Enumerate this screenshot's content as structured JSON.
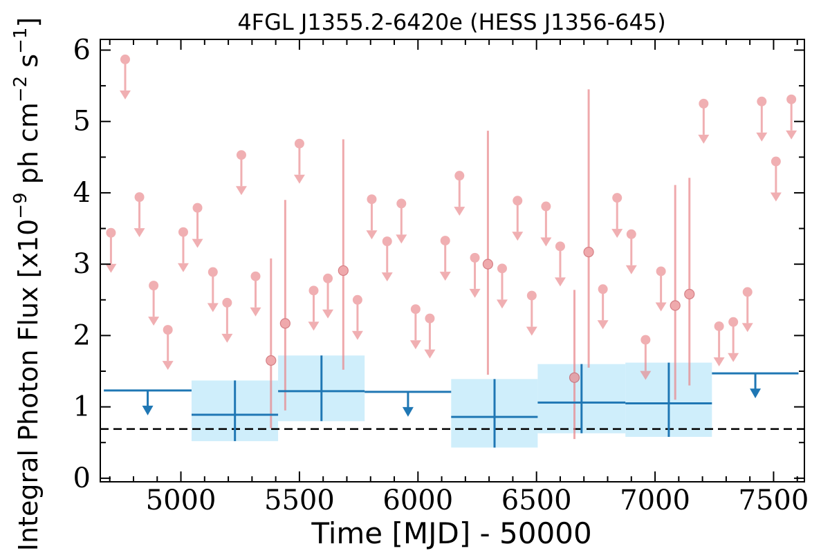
{
  "chart_data": {
    "type": "scatter",
    "title": "4FGL J1355.2-6420e (HESS J1356-645)",
    "xlabel": "Time [MJD] - 50000",
    "ylabel": "Integral Photon Flux [x10",
    "ylabel_exp": "−9",
    "ylabel_unit": " ph cm",
    "ylabel_exp2": "−2",
    "ylabel_unit2": " s",
    "ylabel_exp3": "−1",
    "ylabel_end": "]",
    "xlim": [
      4660,
      7630
    ],
    "ylim": [
      -0.05,
      6.15
    ],
    "xticks": [
      5000,
      5500,
      6000,
      6500,
      7000,
      7500
    ],
    "yticks": [
      0,
      1,
      2,
      3,
      4,
      5,
      6
    ],
    "reference_level": 0.69,
    "colors": {
      "short_bins": "#e9858a",
      "long_bins": "#1f77b4",
      "long_band": "#cfeefb",
      "reference": "#000000"
    },
    "short_bins": {
      "upper_limits": [
        {
          "x": 4705,
          "y": 3.44
        },
        {
          "x": 4765,
          "y": 5.87
        },
        {
          "x": 4825,
          "y": 3.94
        },
        {
          "x": 4885,
          "y": 2.7
        },
        {
          "x": 4945,
          "y": 2.08
        },
        {
          "x": 5010,
          "y": 3.45
        },
        {
          "x": 5070,
          "y": 3.79
        },
        {
          "x": 5135,
          "y": 2.89
        },
        {
          "x": 5195,
          "y": 2.46
        },
        {
          "x": 5255,
          "y": 4.53
        },
        {
          "x": 5315,
          "y": 2.83
        },
        {
          "x": 5500,
          "y": 4.69
        },
        {
          "x": 5560,
          "y": 2.63
        },
        {
          "x": 5620,
          "y": 2.8
        },
        {
          "x": 5745,
          "y": 2.5
        },
        {
          "x": 5805,
          "y": 3.91
        },
        {
          "x": 5870,
          "y": 3.32
        },
        {
          "x": 5930,
          "y": 3.85
        },
        {
          "x": 5990,
          "y": 2.37
        },
        {
          "x": 6050,
          "y": 2.24
        },
        {
          "x": 6115,
          "y": 3.33
        },
        {
          "x": 6175,
          "y": 4.24
        },
        {
          "x": 6240,
          "y": 3.09
        },
        {
          "x": 6355,
          "y": 2.94
        },
        {
          "x": 6420,
          "y": 3.89
        },
        {
          "x": 6480,
          "y": 2.56
        },
        {
          "x": 6540,
          "y": 3.81
        },
        {
          "x": 6600,
          "y": 3.25
        },
        {
          "x": 6780,
          "y": 2.65
        },
        {
          "x": 6840,
          "y": 3.93
        },
        {
          "x": 6900,
          "y": 3.42
        },
        {
          "x": 6960,
          "y": 1.94
        },
        {
          "x": 7025,
          "y": 2.9
        },
        {
          "x": 7205,
          "y": 5.25
        },
        {
          "x": 7270,
          "y": 2.13
        },
        {
          "x": 7330,
          "y": 2.19
        },
        {
          "x": 7390,
          "y": 2.61
        },
        {
          "x": 7450,
          "y": 5.28
        },
        {
          "x": 7510,
          "y": 4.44
        },
        {
          "x": 7575,
          "y": 5.31
        }
      ],
      "detections": [
        {
          "x": 5380,
          "y": 1.65,
          "lo": 0.7,
          "hi": 3.08
        },
        {
          "x": 5440,
          "y": 2.17,
          "lo": 0.95,
          "hi": 3.9
        },
        {
          "x": 5685,
          "y": 2.91,
          "lo": 1.52,
          "hi": 4.75
        },
        {
          "x": 6295,
          "y": 3.0,
          "lo": 1.45,
          "hi": 4.87
        },
        {
          "x": 6660,
          "y": 1.41,
          "lo": 0.55,
          "hi": 2.64
        },
        {
          "x": 6720,
          "y": 3.17,
          "lo": 1.55,
          "hi": 5.45
        },
        {
          "x": 7085,
          "y": 2.42,
          "lo": 1.1,
          "hi": 4.11
        },
        {
          "x": 7145,
          "y": 2.58,
          "lo": 1.3,
          "hi": 4.21
        }
      ]
    },
    "long_bins": {
      "detections": [
        {
          "x0": 5045,
          "x1": 5410,
          "x": 5228,
          "y": 0.89,
          "lo": 0.52,
          "hi": 1.37
        },
        {
          "x0": 5410,
          "x1": 5775,
          "x": 5593,
          "y": 1.22,
          "lo": 0.8,
          "hi": 1.72
        },
        {
          "x0": 6140,
          "x1": 6505,
          "x": 6323,
          "y": 0.86,
          "lo": 0.43,
          "hi": 1.39
        },
        {
          "x0": 6505,
          "x1": 6875,
          "x": 6690,
          "y": 1.06,
          "lo": 0.63,
          "hi": 1.6
        },
        {
          "x0": 6875,
          "x1": 7240,
          "x": 7058,
          "y": 1.05,
          "lo": 0.58,
          "hi": 1.62
        }
      ],
      "upper_limits": [
        {
          "x0": 4675,
          "x1": 5045,
          "x": 4860,
          "y": 1.23
        },
        {
          "x0": 5775,
          "x1": 6140,
          "x": 5958,
          "y": 1.21
        },
        {
          "x0": 7240,
          "x1": 7605,
          "x": 7423,
          "y": 1.47
        }
      ]
    }
  }
}
